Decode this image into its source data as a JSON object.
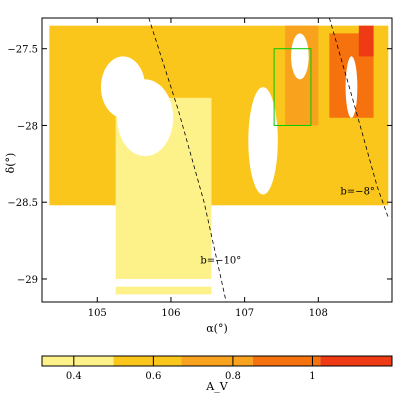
{
  "chart_data": {
    "type": "heatmap",
    "title": "",
    "xlabel": "α(°)",
    "ylabel": "δ(°)",
    "xlim": [
      104.25,
      109.0
    ],
    "ylim": [
      -29.15,
      -27.3
    ],
    "x_inverted": false,
    "x_ticks": [
      105,
      106,
      107,
      108
    ],
    "x_tick_labels": [
      "105",
      "106",
      "107",
      "108"
    ],
    "y_ticks": [
      -29,
      -28.5,
      -28,
      -27.5
    ],
    "y_tick_labels": [
      "−29",
      "−28.5",
      "−28",
      "−27.5"
    ],
    "colorbar": {
      "label": "A_V",
      "range": [
        0.32,
        1.2
      ],
      "ticks": [
        0.4,
        0.6,
        0.8,
        1.0
      ],
      "tick_labels": [
        "0.4",
        "0.6",
        "0.8",
        "1"
      ],
      "levels": [
        {
          "from": 0.32,
          "to": 0.5,
          "color": "#fdf28a"
        },
        {
          "from": 0.5,
          "to": 0.67,
          "color": "#fac61c"
        },
        {
          "from": 0.67,
          "to": 0.85,
          "color": "#f8a21e"
        },
        {
          "from": 0.85,
          "to": 1.02,
          "color": "#f5720f"
        },
        {
          "from": 1.02,
          "to": 1.2,
          "color": "#ee3b15"
        }
      ]
    },
    "regions": [
      {
        "name": "main-block",
        "av": 0.55,
        "x0": 104.35,
        "x1": 108.95,
        "y0": -28.52,
        "y1": -27.35
      },
      {
        "name": "low-extinction-tongue",
        "av": 0.4,
        "x0": 105.25,
        "x1": 106.55,
        "y0": -29.0,
        "y1": -27.82
      },
      {
        "name": "east-strip",
        "av": 0.75,
        "x0": 107.55,
        "x1": 108.0,
        "y0": -28.0,
        "y1": -27.35
      },
      {
        "name": "east-high",
        "av": 0.95,
        "x0": 108.15,
        "x1": 108.75,
        "y0": -27.95,
        "y1": -27.4
      },
      {
        "name": "peak",
        "av": 1.1,
        "x0": 108.55,
        "x1": 108.75,
        "y0": -27.55,
        "y1": -27.35
      }
    ],
    "holes": [
      {
        "cx": 105.65,
        "cy": -27.95,
        "rx": 0.38,
        "ry": 0.25
      },
      {
        "cx": 105.35,
        "cy": -27.75,
        "rx": 0.3,
        "ry": 0.2
      },
      {
        "cx": 107.25,
        "cy": -28.1,
        "rx": 0.2,
        "ry": 0.35
      },
      {
        "cx": 107.75,
        "cy": -27.55,
        "rx": 0.12,
        "ry": 0.15
      },
      {
        "cx": 108.45,
        "cy": -27.75,
        "rx": 0.08,
        "ry": 0.2
      }
    ],
    "strip_segments": [
      {
        "av": 0.4,
        "x0": 105.25,
        "x1": 106.55,
        "y0": -29.1,
        "y1": -29.05
      }
    ],
    "box": {
      "color": "#00cc00",
      "x0": 107.4,
      "x1": 107.9,
      "y0": -28.0,
      "y1": -27.5
    },
    "galactic_latitude_lines": [
      {
        "label": "b=−10°",
        "points": [
          [
            105.7,
            -27.3
          ],
          [
            106.1,
            -27.9
          ],
          [
            106.45,
            -28.5
          ],
          [
            106.75,
            -29.15
          ]
        ],
        "label_pos": [
          106.4,
          -28.9
        ]
      },
      {
        "label": "b=−8°",
        "points": [
          [
            108.15,
            -27.3
          ],
          [
            108.45,
            -27.8
          ],
          [
            108.8,
            -28.4
          ],
          [
            108.95,
            -28.6
          ]
        ],
        "label_pos": [
          108.3,
          -28.45
        ]
      }
    ]
  }
}
